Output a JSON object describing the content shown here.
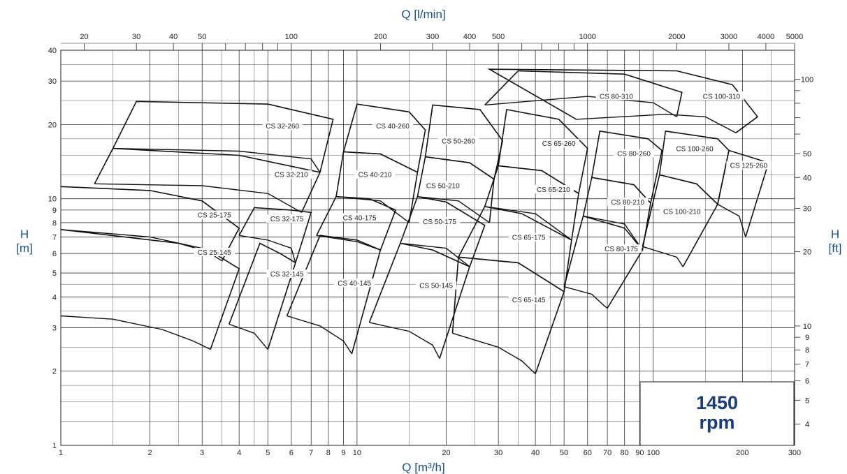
{
  "chart_data": {
    "type": "line",
    "title": "",
    "x_bottom": {
      "label": "Q [m³/h]",
      "scale": "log",
      "range": [
        1,
        300
      ],
      "tick_labels": [
        "1",
        "2",
        "3",
        "4",
        "5",
        "6",
        "7",
        "8",
        "9",
        "10",
        "20",
        "30",
        "40",
        "50",
        "60",
        "70",
        "80",
        "90",
        "100",
        "200",
        "300"
      ]
    },
    "x_top": {
      "label": "Q [l/min]",
      "scale": "log",
      "range": [
        16.67,
        5000
      ],
      "tick_labels": [
        "20",
        "30",
        "40",
        "50",
        "100",
        "200",
        "300",
        "400",
        "500",
        "1000",
        "2000",
        "3000",
        "4000",
        "5000"
      ]
    },
    "y_left": {
      "label_line1": "H",
      "label_line2": "[m]",
      "scale": "log",
      "range": [
        1,
        40
      ],
      "tick_labels": [
        "1",
        "2",
        "3",
        "4",
        "5",
        "6",
        "7",
        "8",
        "9",
        "10",
        "20",
        "30",
        "40"
      ]
    },
    "y_right": {
      "label_line1": "H",
      "label_line2": "[ft]",
      "scale": "log",
      "range": [
        3.28,
        131.2
      ],
      "tick_labels": [
        "4",
        "5",
        "6",
        "7",
        "8",
        "9",
        "10",
        "20",
        "30",
        "40",
        "50",
        "100"
      ]
    },
    "grid": true,
    "legend": "none",
    "annotation": {
      "line1": "1450",
      "line2": "rpm"
    },
    "series": [
      {
        "name": "CS 25-145",
        "label_at": [
          3.3,
          6.0
        ],
        "points": [
          [
            1,
            3.35
          ],
          [
            1.5,
            3.25
          ],
          [
            2.2,
            2.95
          ],
          [
            2.8,
            2.65
          ],
          [
            3.2,
            2.45
          ]
        ],
        "zone": [
          [
            1,
            7.5
          ],
          [
            2.5,
            6.6
          ],
          [
            3.3,
            6.0
          ],
          [
            4.0,
            5.2
          ],
          [
            3.2,
            2.45
          ]
        ]
      },
      {
        "name": "CS 25-175",
        "label_at": [
          3.3,
          8.5
        ],
        "points": [
          [
            1,
            7.5
          ],
          [
            2,
            7.0
          ],
          [
            3,
            6.3
          ],
          [
            3.5,
            5.6
          ]
        ],
        "zone": [
          [
            1,
            11.2
          ],
          [
            2,
            10.8
          ],
          [
            3,
            9.8
          ],
          [
            4,
            7.6
          ],
          [
            3.5,
            5.6
          ]
        ]
      },
      {
        "name": "CS 32-145",
        "label_at": [
          5.8,
          4.9
        ],
        "points": [
          [
            3.7,
            3.1
          ],
          [
            4.5,
            2.85
          ],
          [
            5.0,
            2.45
          ]
        ],
        "zone": [
          [
            3.7,
            3.1
          ],
          [
            4.7,
            6.6
          ],
          [
            5.5,
            6.0
          ],
          [
            6.2,
            5.5
          ],
          [
            5.0,
            2.45
          ]
        ]
      },
      {
        "name": "CS 32-175",
        "label_at": [
          5.8,
          8.2
        ],
        "points": [
          [
            4.0,
            7.1
          ],
          [
            5.0,
            6.8
          ],
          [
            6.0,
            6.3
          ],
          [
            6.2,
            5.5
          ]
        ],
        "zone": [
          [
            4.0,
            7.1
          ],
          [
            4.5,
            9.2
          ],
          [
            6,
            9.0
          ],
          [
            7,
            8.8
          ],
          [
            6.2,
            5.5
          ]
        ]
      },
      {
        "name": "CS 32-210",
        "label_at": [
          6.0,
          12.4
        ],
        "points": [
          [
            1.3,
            11.5
          ],
          [
            3,
            11.3
          ],
          [
            5,
            10.5
          ],
          [
            6.5,
            8.8
          ]
        ],
        "zone": [
          [
            1.3,
            11.5
          ],
          [
            1.5,
            16.0
          ],
          [
            4,
            15.0
          ],
          [
            7.5,
            12.8
          ],
          [
            6.5,
            8.8
          ]
        ]
      },
      {
        "name": "CS 32-260",
        "label_at": [
          5.6,
          19.5
        ],
        "points": [
          [
            1.5,
            16.0
          ],
          [
            4,
            15.6
          ],
          [
            7,
            14.5
          ],
          [
            7.5,
            12.8
          ]
        ],
        "zone": [
          [
            1.5,
            16.0
          ],
          [
            1.8,
            24.8
          ],
          [
            5,
            24.2
          ],
          [
            8.3,
            21.0
          ],
          [
            7.5,
            12.8
          ]
        ]
      },
      {
        "name": "CS 40-145",
        "label_at": [
          9.8,
          4.5
        ],
        "points": [
          [
            5.8,
            3.35
          ],
          [
            7.5,
            3.05
          ],
          [
            9,
            2.65
          ],
          [
            9.6,
            2.35
          ]
        ],
        "zone": [
          [
            5.8,
            3.35
          ],
          [
            7.5,
            7.1
          ],
          [
            10,
            6.8
          ],
          [
            12,
            6.2
          ],
          [
            9.6,
            2.35
          ]
        ]
      },
      {
        "name": "CS 40-175",
        "label_at": [
          10.2,
          8.3
        ],
        "points": [
          [
            7.3,
            7.1
          ],
          [
            10,
            6.7
          ],
          [
            12,
            6.2
          ],
          [
            12.0,
            6.2
          ]
        ],
        "zone": [
          [
            7.3,
            7.1
          ],
          [
            8.5,
            10.2
          ],
          [
            11,
            10.0
          ],
          [
            13.5,
            9.0
          ],
          [
            12,
            6.2
          ]
        ]
      },
      {
        "name": "CS 40-210",
        "label_at": [
          11.5,
          12.4
        ],
        "points": [
          [
            8.5,
            10.2
          ],
          [
            12,
            9.8
          ],
          [
            15,
            8.0
          ]
        ],
        "zone": [
          [
            8.5,
            10.2
          ],
          [
            9.0,
            15.5
          ],
          [
            12,
            15.2
          ],
          [
            16,
            12.8
          ],
          [
            15,
            8.0
          ]
        ]
      },
      {
        "name": "CS 40-260",
        "label_at": [
          13.2,
          19.5
        ],
        "points": [
          [
            9,
            15.5
          ],
          [
            12,
            15.2
          ],
          [
            16,
            12.8
          ]
        ],
        "zone": [
          [
            9,
            15.5
          ],
          [
            10,
            24.2
          ],
          [
            15,
            22.5
          ],
          [
            17,
            19.0
          ],
          [
            16,
            12.8
          ]
        ]
      },
      {
        "name": "CS 50-145",
        "label_at": [
          18.5,
          4.4
        ],
        "points": [
          [
            11,
            3.15
          ],
          [
            15,
            2.9
          ],
          [
            18,
            2.55
          ],
          [
            19,
            2.25
          ]
        ],
        "zone": [
          [
            11,
            3.15
          ],
          [
            14,
            6.6
          ],
          [
            18,
            6.2
          ],
          [
            24,
            5.3
          ],
          [
            19,
            2.25
          ]
        ]
      },
      {
        "name": "CS 50-175",
        "label_at": [
          19,
          8.0
        ],
        "points": [
          [
            14,
            6.6
          ],
          [
            20,
            6.3
          ],
          [
            24,
            5.3
          ]
        ],
        "zone": [
          [
            14,
            6.6
          ],
          [
            16,
            10.2
          ],
          [
            20,
            9.7
          ],
          [
            27,
            7.8
          ],
          [
            24,
            5.3
          ]
        ]
      },
      {
        "name": "CS 50-210",
        "label_at": [
          19.5,
          11.2
        ],
        "points": [
          [
            16,
            10.2
          ],
          [
            22,
            9.8
          ],
          [
            28,
            8.0
          ]
        ],
        "zone": [
          [
            16,
            10.2
          ],
          [
            17,
            14.8
          ],
          [
            24,
            14.0
          ],
          [
            29,
            12.0
          ],
          [
            28,
            8.0
          ]
        ]
      },
      {
        "name": "CS 50-260",
        "label_at": [
          22,
          17.0
        ],
        "points": [
          [
            17,
            14.8
          ],
          [
            24,
            14.0
          ],
          [
            29,
            12.0
          ]
        ],
        "zone": [
          [
            17,
            14.8
          ],
          [
            18,
            24.0
          ],
          [
            26,
            23.0
          ],
          [
            31,
            17.2
          ],
          [
            29,
            12.0
          ]
        ]
      },
      {
        "name": "CS 65-145",
        "label_at": [
          38,
          3.85
        ],
        "points": [
          [
            21,
            2.85
          ],
          [
            30,
            2.5
          ],
          [
            36,
            2.2
          ],
          [
            40,
            1.95
          ]
        ],
        "zone": [
          [
            21,
            2.85
          ],
          [
            22,
            5.8
          ],
          [
            35,
            5.5
          ],
          [
            50,
            4.2
          ],
          [
            40,
            1.95
          ]
        ]
      },
      {
        "name": "CS 65-175",
        "label_at": [
          38,
          6.9
        ],
        "points": [
          [
            22,
            5.8
          ],
          [
            35,
            5.5
          ],
          [
            50,
            4.2
          ]
        ],
        "zone": [
          [
            22,
            5.8
          ],
          [
            27,
            9.3
          ],
          [
            36,
            8.7
          ],
          [
            53,
            6.8
          ],
          [
            50,
            4.2
          ]
        ]
      },
      {
        "name": "CS 65-210",
        "label_at": [
          46,
          10.8
        ],
        "points": [
          [
            27,
            9.3
          ],
          [
            40,
            8.7
          ],
          [
            53,
            6.8
          ]
        ],
        "zone": [
          [
            27,
            9.3
          ],
          [
            30,
            13.6
          ],
          [
            42,
            13.0
          ],
          [
            56,
            10.5
          ],
          [
            53,
            6.8
          ]
        ]
      },
      {
        "name": "CS 65-260",
        "label_at": [
          48,
          16.6
        ],
        "points": [
          [
            30,
            13.6
          ],
          [
            42,
            13.0
          ],
          [
            56,
            10.5
          ]
        ],
        "zone": [
          [
            30,
            13.6
          ],
          [
            32,
            23.0
          ],
          [
            48,
            21.0
          ],
          [
            60,
            16.0
          ],
          [
            56,
            10.5
          ]
        ]
      },
      {
        "name": "CS 80-175",
        "label_at": [
          78,
          6.2
        ],
        "points": [
          [
            50,
            4.4
          ],
          [
            62,
            4.1
          ],
          [
            68,
            3.7
          ],
          [
            70,
            3.6
          ]
        ],
        "zone": [
          [
            50,
            4.4
          ],
          [
            58,
            8.5
          ],
          [
            80,
            7.6
          ],
          [
            92,
            6.2
          ],
          [
            70,
            3.6
          ]
        ]
      },
      {
        "name": "CS 80-210",
        "label_at": [
          82,
          9.6
        ],
        "points": [
          [
            58,
            8.5
          ],
          [
            80,
            7.9
          ],
          [
            92,
            6.2
          ]
        ],
        "zone": [
          [
            58,
            8.5
          ],
          [
            62,
            12.2
          ],
          [
            86,
            11.4
          ],
          [
            98,
            9.6
          ],
          [
            92,
            6.2
          ]
        ]
      },
      {
        "name": "CS 80-260",
        "label_at": [
          86,
          15.1
        ],
        "points": [
          [
            62,
            12.2
          ],
          [
            86,
            11.4
          ],
          [
            98,
            9.6
          ]
        ],
        "zone": [
          [
            62,
            12.2
          ],
          [
            66,
            18.8
          ],
          [
            96,
            17.5
          ],
          [
            107,
            15.7
          ],
          [
            98,
            9.6
          ]
        ]
      },
      {
        "name": "CS 80-310",
        "label_at": [
          75,
          25.8
        ],
        "points": [
          [
            27,
            24.0
          ],
          [
            60,
            26.0
          ],
          [
            100,
            24.5
          ],
          [
            120,
            21.5
          ]
        ],
        "zone": [
          [
            27,
            24.0
          ],
          [
            35,
            33.0
          ],
          [
            80,
            32.0
          ],
          [
            125,
            27.0
          ],
          [
            120,
            21.5
          ]
        ]
      },
      {
        "name": "CS 100-210",
        "label_at": [
          125,
          8.8
        ],
        "points": [
          [
            92,
            6.4
          ],
          [
            120,
            5.8
          ],
          [
            126,
            5.3
          ]
        ],
        "zone": [
          [
            92,
            6.4
          ],
          [
            105,
            12.5
          ],
          [
            140,
            11.5
          ],
          [
            165,
            9.5
          ],
          [
            126,
            5.3
          ]
        ]
      },
      {
        "name": "CS 100-260",
        "label_at": [
          138,
          15.8
        ],
        "points": [
          [
            105,
            12.5
          ],
          [
            140,
            11.5
          ],
          [
            165,
            9.5
          ]
        ],
        "zone": [
          [
            105,
            12.5
          ],
          [
            110,
            18.8
          ],
          [
            165,
            17.5
          ],
          [
            180,
            15.7
          ],
          [
            165,
            9.5
          ]
        ]
      },
      {
        "name": "CS 100-310",
        "label_at": [
          170,
          25.8
        ],
        "points": [
          [
            55,
            21.0
          ],
          [
            110,
            22.0
          ],
          [
            150,
            21.5
          ],
          [
            190,
            18.5
          ]
        ],
        "zone": [
          [
            55,
            21.0
          ],
          [
            28,
            33.5
          ],
          [
            120,
            33.0
          ],
          [
            185,
            29.0
          ],
          [
            225,
            21.5
          ],
          [
            190,
            18.5
          ]
        ]
      },
      {
        "name": "CS 125-260",
        "label_at": [
          210,
          13.5
        ],
        "points": [
          [
            165,
            9.5
          ],
          [
            195,
            8.5
          ],
          [
            205,
            7.0
          ]
        ],
        "zone": [
          [
            165,
            9.5
          ],
          [
            180,
            15.7
          ],
          [
            245,
            14.0
          ],
          [
            205,
            7.0
          ]
        ]
      }
    ]
  }
}
